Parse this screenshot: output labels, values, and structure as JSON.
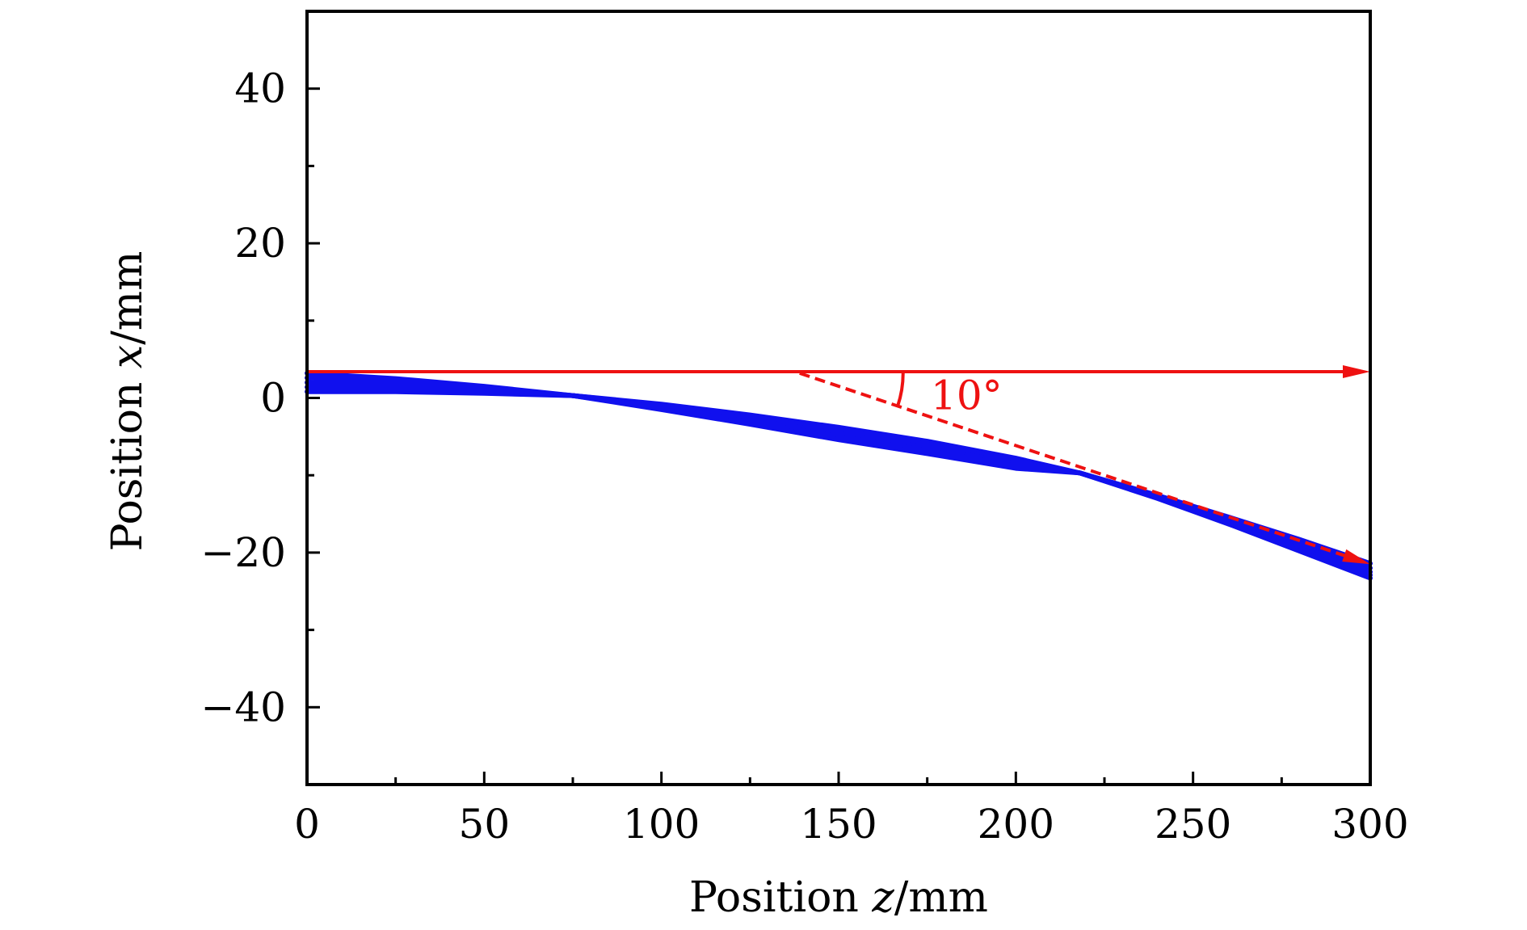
{
  "chart_data": {
    "type": "line",
    "title": "",
    "xlabel": "Position z/mm",
    "ylabel": "Position x/mm",
    "xlabel_parts": [
      "Position ",
      "z",
      "/mm"
    ],
    "ylabel_parts": [
      "Position ",
      "x",
      "/mm"
    ],
    "xlim": [
      0,
      300
    ],
    "ylim": [
      -50,
      50
    ],
    "x_ticks": [
      0,
      50,
      100,
      150,
      200,
      250,
      300
    ],
    "x_tick_labels": [
      "0",
      "50",
      "100",
      "150",
      "200",
      "250",
      "300"
    ],
    "x_minor_ticks": [
      25,
      75,
      125,
      175,
      225,
      275
    ],
    "y_ticks": [
      -40,
      -20,
      0,
      20,
      40
    ],
    "y_tick_labels": [
      "−40",
      "−20",
      "0",
      "20",
      "40"
    ],
    "y_minor_ticks": [
      -30,
      -10,
      10,
      30
    ],
    "grid": false,
    "colors": {
      "trajectories": "#1010ee",
      "annotation": "#ee1111",
      "axes": "#000000"
    },
    "series": [
      {
        "x": [
          0,
          25,
          50,
          75,
          100,
          125,
          150,
          175,
          200,
          218,
          240,
          260,
          280,
          300
        ],
        "y": [
          3.2,
          2.5,
          1.5,
          0.3,
          -0.8,
          -2.2,
          -3.8,
          -5.6,
          -7.8,
          -9.7,
          -12.6,
          -15.4,
          -18.3,
          -21.4
        ]
      },
      {
        "x": [
          0,
          25,
          50,
          75,
          100,
          125,
          150,
          175,
          200,
          218,
          240,
          260,
          280,
          300
        ],
        "y": [
          2.6,
          2.1,
          1.3,
          0.3,
          -0.9,
          -2.5,
          -4.2,
          -6.0,
          -8.2,
          -9.7,
          -12.7,
          -15.7,
          -18.8,
          -22.0
        ]
      },
      {
        "x": [
          0,
          25,
          50,
          75,
          100,
          125,
          150,
          175,
          200,
          218,
          240,
          260,
          280,
          300
        ],
        "y": [
          2.0,
          1.6,
          1.0,
          0.3,
          -1.1,
          -2.8,
          -4.6,
          -6.4,
          -8.5,
          -9.7,
          -12.8,
          -15.9,
          -19.2,
          -22.5
        ]
      },
      {
        "x": [
          0,
          25,
          50,
          75,
          100,
          125,
          150,
          175,
          200,
          218,
          240,
          260,
          280,
          300
        ],
        "y": [
          1.4,
          1.2,
          0.8,
          0.3,
          -1.3,
          -3.1,
          -5.0,
          -6.8,
          -8.8,
          -9.7,
          -12.9,
          -16.1,
          -19.5,
          -22.9
        ]
      },
      {
        "x": [
          0,
          25,
          50,
          75,
          100,
          125,
          150,
          175,
          200,
          218,
          240,
          260,
          280,
          300
        ],
        "y": [
          0.8,
          0.8,
          0.6,
          0.3,
          -1.5,
          -3.4,
          -5.4,
          -7.2,
          -9.1,
          -9.7,
          -13.0,
          -16.3,
          -19.8,
          -23.3
        ]
      }
    ],
    "annotations": {
      "reference_arrow": {
        "x_start": 0,
        "x_end": 300,
        "y": 3.4
      },
      "dashed_arrow": {
        "x_start": 139,
        "y_start": 3.2,
        "x_end": 300,
        "y_end": -21.5
      },
      "angle_arc": {
        "center_x": 139,
        "center_y": 3.2,
        "from_deg": 0,
        "to_deg": -10
      },
      "angle_label": {
        "text": "10°",
        "x": 176,
        "y": 0
      }
    }
  }
}
